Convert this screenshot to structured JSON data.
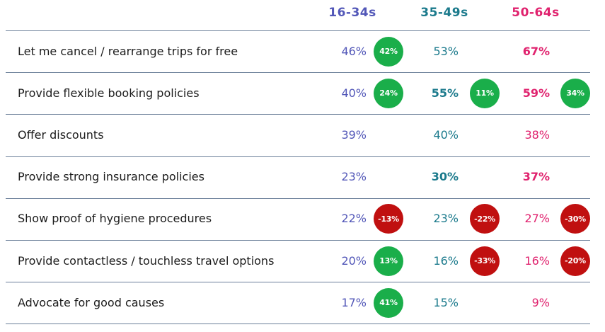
{
  "colors": {
    "g1": "#5257b8",
    "g2": "#1b7a8c",
    "g3": "#e0226e",
    "badge_pos": "#1aae4a",
    "badge_neg": "#c01010",
    "rule": "#6b7f99"
  },
  "chart_data": {
    "type": "table",
    "columns": [
      "16-34s",
      "35-49s",
      "50-64s"
    ],
    "rows": [
      {
        "label": "Let me cancel / rearrange trips for free",
        "cells": [
          {
            "value": "46%",
            "bold": false,
            "badge": "42%"
          },
          {
            "value": "53%",
            "bold": false,
            "badge": null
          },
          {
            "value": "67%",
            "bold": true,
            "badge": null
          }
        ]
      },
      {
        "label": "Provide flexible booking policies",
        "cells": [
          {
            "value": "40%",
            "bold": false,
            "badge": "24%"
          },
          {
            "value": "55%",
            "bold": true,
            "badge": "11%"
          },
          {
            "value": "59%",
            "bold": true,
            "badge": "34%"
          }
        ]
      },
      {
        "label": "Offer discounts",
        "cells": [
          {
            "value": "39%",
            "bold": false,
            "badge": null
          },
          {
            "value": "40%",
            "bold": false,
            "badge": null
          },
          {
            "value": "38%",
            "bold": false,
            "badge": null
          }
        ]
      },
      {
        "label": "Provide strong insurance policies",
        "cells": [
          {
            "value": "23%",
            "bold": false,
            "badge": null
          },
          {
            "value": "30%",
            "bold": true,
            "badge": null
          },
          {
            "value": "37%",
            "bold": true,
            "badge": null
          }
        ]
      },
      {
        "label": "Show proof of hygiene procedures",
        "cells": [
          {
            "value": "22%",
            "bold": false,
            "badge": "-13%"
          },
          {
            "value": "23%",
            "bold": false,
            "badge": "-22%"
          },
          {
            "value": "27%",
            "bold": false,
            "badge": "-30%"
          }
        ]
      },
      {
        "label": "Provide contactless / touchless travel options",
        "cells": [
          {
            "value": "20%",
            "bold": false,
            "badge": "13%"
          },
          {
            "value": "16%",
            "bold": false,
            "badge": "-33%"
          },
          {
            "value": "16%",
            "bold": false,
            "badge": "-20%"
          }
        ]
      },
      {
        "label": "Advocate for good causes",
        "cells": [
          {
            "value": "17%",
            "bold": false,
            "badge": "41%"
          },
          {
            "value": "15%",
            "bold": false,
            "badge": null
          },
          {
            "value": "9%",
            "bold": false,
            "badge": null
          }
        ]
      }
    ]
  }
}
